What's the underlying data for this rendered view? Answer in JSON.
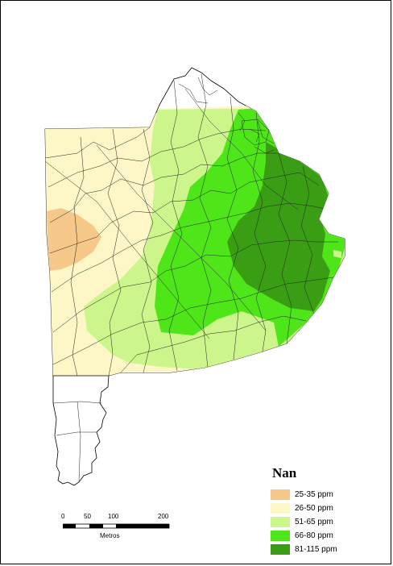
{
  "legend": {
    "title": "Nan",
    "items": [
      {
        "label": "25-35 ppm",
        "color": "#f6c88a"
      },
      {
        "label": "26-50 ppm",
        "color": "#fdf6c6"
      },
      {
        "label": "51-65 ppm",
        "color": "#ccf58c"
      },
      {
        "label": "66-80 ppm",
        "color": "#4ee619"
      },
      {
        "label": "81-115 ppm",
        "color": "#3a9e14"
      }
    ]
  },
  "scale_bar": {
    "ticks": [
      "0",
      "50",
      "100",
      "200"
    ],
    "unit": "Metros"
  }
}
